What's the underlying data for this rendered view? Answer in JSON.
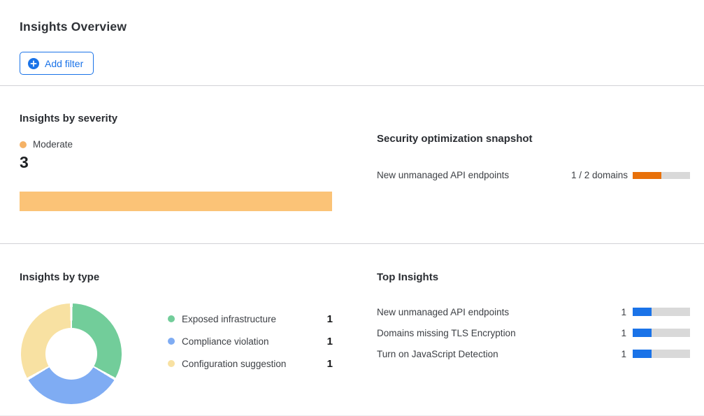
{
  "page": {
    "title": "Insights Overview"
  },
  "toolbar": {
    "add_filter_label": "Add filter",
    "accent_color": "#1a73e8"
  },
  "severity": {
    "heading": "Insights by severity",
    "legend_label": "Moderate",
    "legend_color": "#F5B266",
    "count": "3",
    "bar_color": "#FBC377"
  },
  "snapshot": {
    "heading": "Security optimization snapshot",
    "rows": [
      {
        "label": "New unmanaged API endpoints",
        "value": "1 / 2 domains",
        "progress_pct": 50,
        "fill_color": "#E8710A"
      }
    ]
  },
  "by_type": {
    "heading": "Insights by type",
    "slices": [
      {
        "label": "Exposed infrastructure",
        "count": 1,
        "value": "1",
        "color": "#72CD9A"
      },
      {
        "label": "Compliance violation",
        "count": 1,
        "value": "1",
        "color": "#7FACF3"
      },
      {
        "label": "Configuration suggestion",
        "count": 1,
        "value": "1",
        "color": "#F8E1A2"
      }
    ]
  },
  "top_insights": {
    "heading": "Top Insights",
    "rows": [
      {
        "label": "New unmanaged API endpoints",
        "value": "1",
        "progress_pct": 33,
        "fill_color": "#1A73E8"
      },
      {
        "label": "Domains missing TLS Encryption",
        "value": "1",
        "progress_pct": 33,
        "fill_color": "#1A73E8"
      },
      {
        "label": "Turn on JavaScript Detection",
        "value": "1",
        "progress_pct": 33,
        "fill_color": "#1A73E8"
      }
    ]
  },
  "chart_data": [
    {
      "type": "bar",
      "title": "Insights by severity",
      "orientation": "horizontal",
      "categories": [
        "Moderate"
      ],
      "values": [
        3
      ],
      "colors": [
        "#FBC377"
      ],
      "legend_position": "top"
    },
    {
      "type": "pie",
      "title": "Insights by type",
      "labels": [
        "Exposed infrastructure",
        "Compliance violation",
        "Configuration suggestion"
      ],
      "values": [
        1,
        1,
        1
      ],
      "colors": [
        "#72CD9A",
        "#7FACF3",
        "#F8E1A2"
      ],
      "donut_hole": 0.52,
      "start_angle_deg": 0,
      "direction": "clockwise",
      "legend_position": "right"
    },
    {
      "type": "bar",
      "title": "Top Insights",
      "orientation": "horizontal",
      "categories": [
        "New unmanaged API endpoints",
        "Domains missing TLS Encryption",
        "Turn on JavaScript Detection"
      ],
      "values": [
        1,
        1,
        1
      ],
      "xlim": [
        0,
        3
      ],
      "colors": [
        "#1A73E8",
        "#1A73E8",
        "#1A73E8"
      ]
    },
    {
      "type": "bar",
      "title": "Security optimization snapshot",
      "orientation": "horizontal",
      "categories": [
        "New unmanaged API endpoints"
      ],
      "values": [
        1
      ],
      "totals": [
        2
      ],
      "unit": "domains",
      "colors": [
        "#E8710A"
      ]
    }
  ]
}
